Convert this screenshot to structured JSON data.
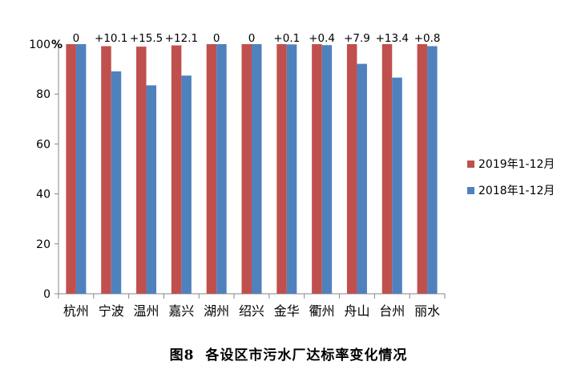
{
  "chart_data": {
    "type": "bar",
    "title": "",
    "ylabel": "%",
    "xlabel": "",
    "ylim": [
      0,
      100
    ],
    "yticks": [
      0,
      20,
      40,
      60,
      80,
      100
    ],
    "categories": [
      "杭州",
      "宁波",
      "温州",
      "嘉兴",
      "湖州",
      "绍兴",
      "金华",
      "衢州",
      "舟山",
      "台州",
      "丽水"
    ],
    "series": [
      {
        "name": "2019年1-12月",
        "color": "#c0504d",
        "values": [
          100,
          99.2,
          99.0,
          99.5,
          100,
          100,
          100,
          100,
          100,
          100,
          100
        ]
      },
      {
        "name": "2018年1-12月",
        "color": "#4f81bd",
        "values": [
          100,
          89.1,
          83.5,
          87.4,
          100,
          100,
          99.9,
          99.6,
          92.1,
          86.6,
          99.2
        ]
      }
    ],
    "annotations": [
      "0",
      "+10.1",
      "+15.5",
      "+12.1",
      "0",
      "0",
      "+0.1",
      "+0.4",
      "+7.9",
      "+13.4",
      "+0.8"
    ],
    "legend_position": "right"
  },
  "caption": {
    "number": "图8",
    "text": "各设区市污水厂达标率变化情况"
  }
}
